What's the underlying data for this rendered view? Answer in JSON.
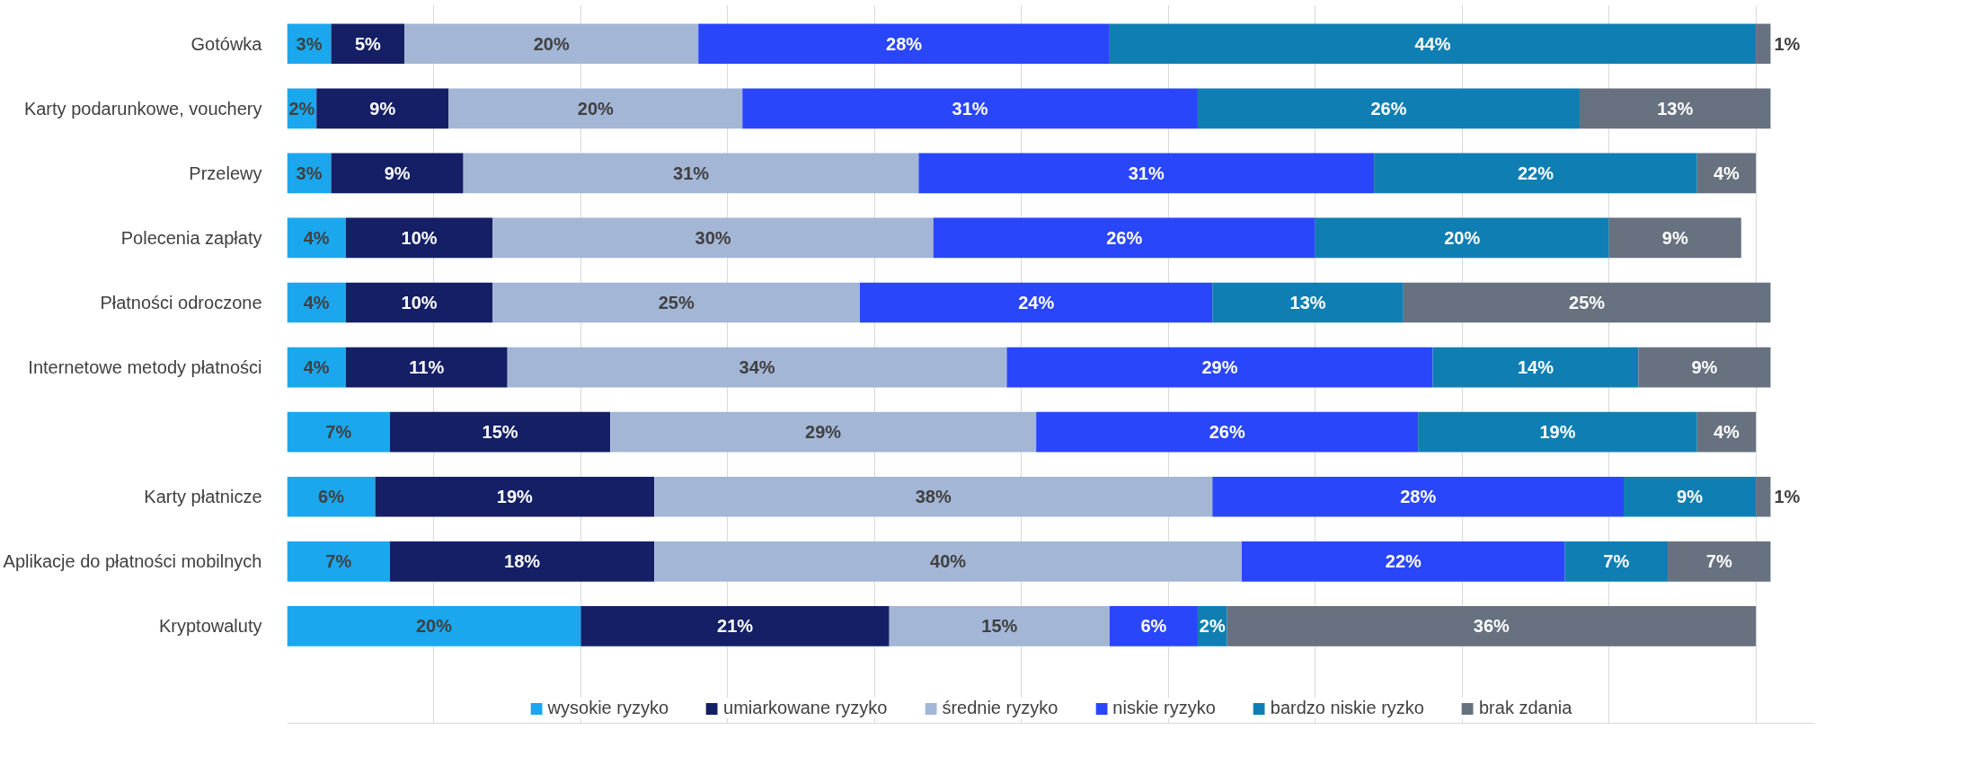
{
  "chart_data": {
    "type": "bar",
    "orientation": "horizontal",
    "stacked": true,
    "categories": [
      "Gotówka",
      "Karty podarunkowe, vouchery",
      "Przelewy",
      "Polecenia zapłaty",
      "Płatności odroczone",
      "Internetowe metody płatności",
      null,
      "Karty płatnicze",
      "Aplikacje do płatności mobilnych",
      "Kryptowaluty"
    ],
    "series": [
      {
        "name": "wysokie ryzyko",
        "color": "#1ba7ed",
        "values": [
          3,
          2,
          3,
          4,
          4,
          4,
          7,
          6,
          7,
          20
        ],
        "value_labels": [
          "3%",
          "2%",
          "3%",
          "4%",
          "4%",
          "4%",
          "7%",
          "6%",
          "7%",
          "20%"
        ]
      },
      {
        "name": "umiarkowane ryzyko",
        "color": "#141f66",
        "values": [
          5,
          9,
          9,
          10,
          10,
          11,
          15,
          19,
          18,
          21
        ],
        "value_labels": [
          "5%",
          "9%",
          "9%",
          "10%",
          "10%",
          "11%",
          "15%",
          "19%",
          "18%",
          "21%"
        ]
      },
      {
        "name": "średnie ryzyko",
        "color": "#a3b6d6",
        "values": [
          20,
          20,
          31,
          30,
          25,
          34,
          29,
          38,
          40,
          15
        ],
        "value_labels": [
          "20%",
          "20%",
          "31%",
          "30%",
          "25%",
          "34%",
          "29%",
          "38%",
          "40%",
          "15%"
        ]
      },
      {
        "name": "niskie ryzyko",
        "color": "#2a46fa",
        "values": [
          28,
          31,
          31,
          26,
          24,
          29,
          26,
          28,
          22,
          6
        ],
        "value_labels": [
          "28%",
          "31%",
          "31%",
          "26%",
          "24%",
          "29%",
          "26%",
          "28%",
          "22%",
          "6%"
        ]
      },
      {
        "name": "bardzo niskie ryzko",
        "color": "#0f7fb3",
        "values": [
          44,
          26,
          22,
          20,
          13,
          14,
          19,
          9,
          7,
          2
        ],
        "value_labels": [
          "44%",
          "26%",
          "22%",
          "20%",
          "13%",
          "14%",
          "19%",
          "9%",
          "7%",
          "2%"
        ]
      },
      {
        "name": "brak zdania",
        "color": "#67717f",
        "values": [
          1,
          13,
          4,
          9,
          25,
          9,
          4,
          1,
          7,
          36
        ],
        "value_labels": [
          "1%",
          "13%",
          "4%",
          "9%",
          "25%",
          "9%",
          "4%",
          "1%",
          "7%",
          "36%"
        ]
      }
    ],
    "xlim": [
      0,
      104
    ],
    "tick_labels": "y",
    "grid": "x",
    "legend": "bottom"
  }
}
